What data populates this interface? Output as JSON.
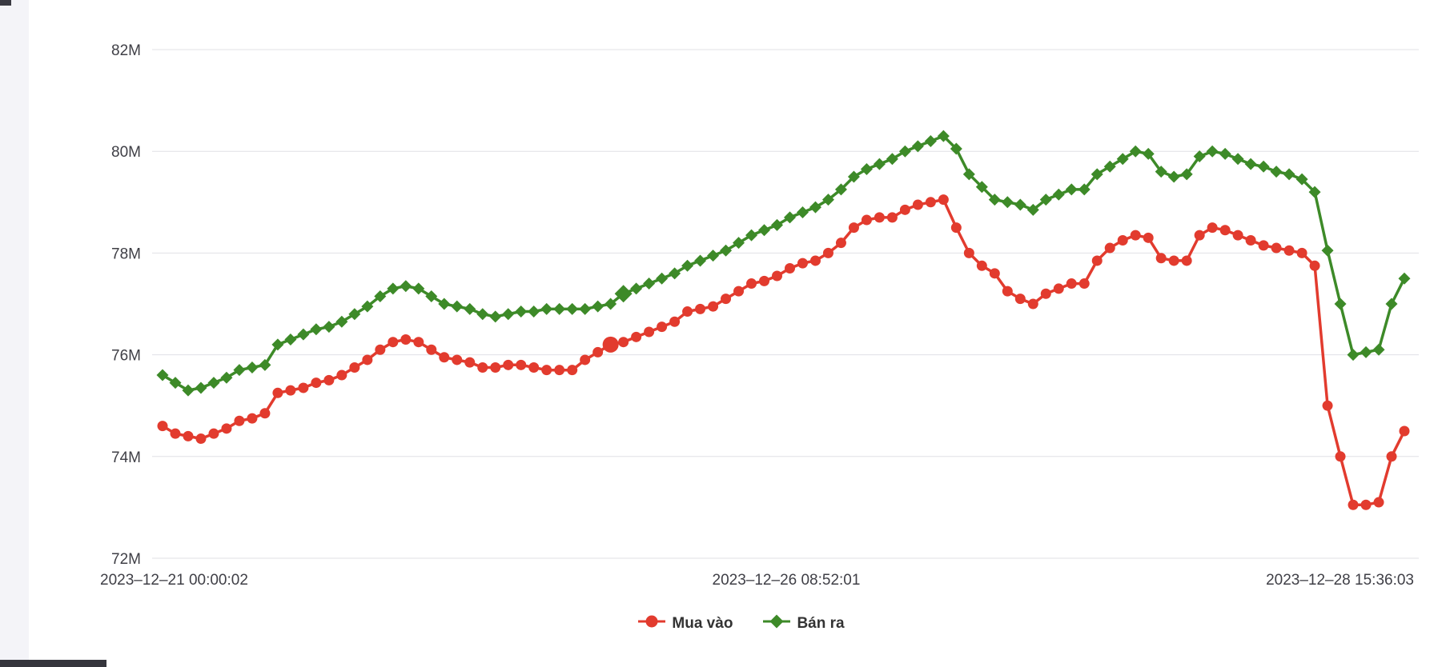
{
  "page": {
    "background": "#ffffff",
    "left_strip_color": "#f4f4f8"
  },
  "chart_data": {
    "type": "line",
    "title": "",
    "xlabel": "",
    "ylabel": "",
    "unit": "M",
    "ylim": [
      72,
      82
    ],
    "grid": true,
    "legend_position": "bottom",
    "grid_color": "#e0e0e6",
    "y_ticks": [
      {
        "label": "72M",
        "value": 72
      },
      {
        "label": "74M",
        "value": 74
      },
      {
        "label": "76M",
        "value": 76
      },
      {
        "label": "78M",
        "value": 78
      },
      {
        "label": "80M",
        "value": 80
      },
      {
        "label": "82M",
        "value": 82
      }
    ],
    "x_labels": [
      "2023–12–21 00:00:02",
      "2023–12–26 08:52:01",
      "2023–12–28 15:36:03"
    ],
    "series": [
      {
        "name": "Mua vào",
        "color": "#e23b2e",
        "marker": "circle",
        "emphasis_index": 35,
        "values": [
          74.6,
          74.45,
          74.4,
          74.35,
          74.45,
          74.55,
          74.7,
          74.75,
          74.85,
          75.25,
          75.3,
          75.35,
          75.45,
          75.5,
          75.6,
          75.75,
          75.9,
          76.1,
          76.25,
          76.3,
          76.25,
          76.1,
          75.95,
          75.9,
          75.85,
          75.75,
          75.75,
          75.8,
          75.8,
          75.75,
          75.7,
          75.7,
          75.7,
          75.9,
          76.05,
          76.2,
          76.25,
          76.35,
          76.45,
          76.55,
          76.65,
          76.85,
          76.9,
          76.95,
          77.1,
          77.25,
          77.4,
          77.45,
          77.55,
          77.7,
          77.8,
          77.85,
          78.0,
          78.2,
          78.5,
          78.65,
          78.7,
          78.7,
          78.85,
          78.95,
          79.0,
          79.05,
          78.5,
          78.0,
          77.75,
          77.6,
          77.25,
          77.1,
          77.0,
          77.2,
          77.3,
          77.4,
          77.4,
          77.85,
          78.1,
          78.25,
          78.35,
          78.3,
          77.9,
          77.85,
          77.85,
          78.35,
          78.5,
          78.45,
          78.35,
          78.25,
          78.15,
          78.1,
          78.05,
          78.0,
          77.75,
          75.0,
          74.0,
          73.05,
          73.05,
          73.1,
          74.0,
          74.5
        ]
      },
      {
        "name": "Bán ra",
        "color": "#3d8a28",
        "marker": "diamond",
        "emphasis_index": 36,
        "values": [
          75.6,
          75.45,
          75.3,
          75.35,
          75.45,
          75.55,
          75.7,
          75.75,
          75.8,
          76.2,
          76.3,
          76.4,
          76.5,
          76.55,
          76.65,
          76.8,
          76.95,
          77.15,
          77.3,
          77.35,
          77.3,
          77.15,
          77.0,
          76.95,
          76.9,
          76.8,
          76.75,
          76.8,
          76.85,
          76.85,
          76.9,
          76.9,
          76.9,
          76.9,
          76.95,
          77.0,
          77.2,
          77.3,
          77.4,
          77.5,
          77.6,
          77.75,
          77.85,
          77.95,
          78.05,
          78.2,
          78.35,
          78.45,
          78.55,
          78.7,
          78.8,
          78.9,
          79.05,
          79.25,
          79.5,
          79.65,
          79.75,
          79.85,
          80.0,
          80.1,
          80.2,
          80.3,
          80.05,
          79.55,
          79.3,
          79.05,
          79.0,
          78.95,
          78.85,
          79.05,
          79.15,
          79.25,
          79.25,
          79.55,
          79.7,
          79.85,
          80.0,
          79.95,
          79.6,
          79.5,
          79.55,
          79.9,
          80.0,
          79.95,
          79.85,
          79.75,
          79.7,
          79.6,
          79.55,
          79.45,
          79.2,
          78.05,
          77.0,
          76.0,
          76.05,
          76.1,
          77.0,
          77.5
        ]
      }
    ]
  }
}
